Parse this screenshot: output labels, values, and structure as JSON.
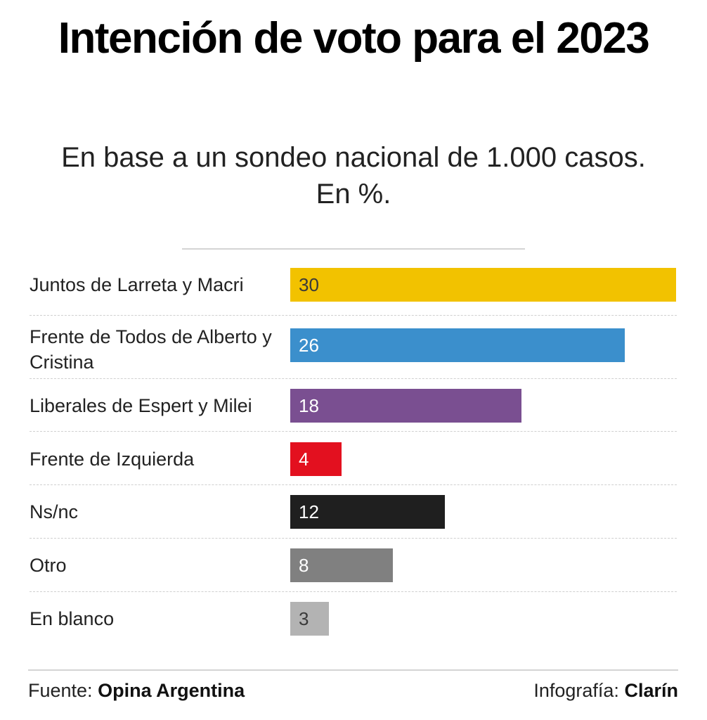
{
  "header": {
    "title": "Intención de voto para el 2023",
    "subtitle_line1": "En base a un sondeo nacional de 1.000 casos.",
    "subtitle_line2": "En %."
  },
  "footer": {
    "source_prefix": "Fuente:",
    "source_name": "Opina Argentina",
    "credit_prefix": "Infografía:",
    "credit_name": "Clarín"
  },
  "chart_data": {
    "type": "bar",
    "orientation": "horizontal",
    "title": "Intención de voto para el 2023",
    "subtitle": "En base a un sondeo nacional de 1.000 casos. En %.",
    "unit": "%",
    "xlim": [
      0,
      30
    ],
    "grid": false,
    "categories": [
      "Juntos de Larreta y Macri",
      "Frente de Todos de Alberto y Cristina",
      "Liberales de Espert y Milei",
      "Frente de Izquierda",
      "Ns/nc",
      "Otro",
      "En blanco"
    ],
    "values": [
      30,
      26,
      18,
      4,
      12,
      8,
      3
    ],
    "colors": [
      "#f2c200",
      "#3b8fcc",
      "#7a4f91",
      "#e3101f",
      "#1f1f1f",
      "#808080",
      "#b3b3b3"
    ],
    "label_colors": [
      "#3a3a3a",
      "#ffffff",
      "#ffffff",
      "#ffffff",
      "#ffffff",
      "#ffffff",
      "#3a3a3a"
    ]
  }
}
